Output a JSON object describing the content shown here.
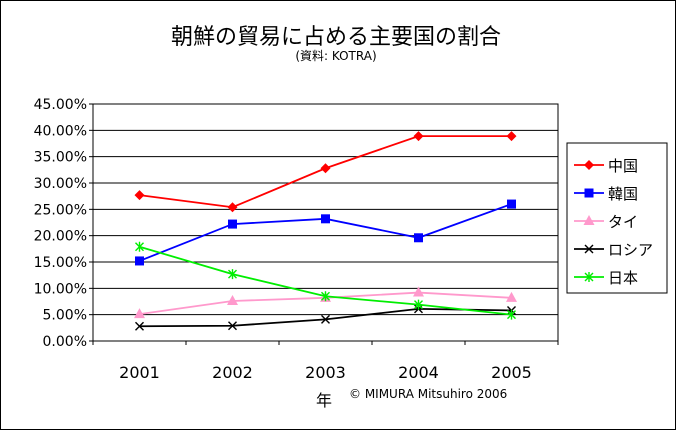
{
  "chart_data": {
    "type": "line",
    "title": "朝鮮の貿易に占める主要国の割合",
    "subtitle": "(資料: KOTRA)",
    "xlabel": "年",
    "ylabel": "",
    "credit": "© MIMURA Mitsuhiro 2006",
    "categories": [
      "2001",
      "2002",
      "2003",
      "2004",
      "2005"
    ],
    "ylim": [
      0,
      45
    ],
    "yticks": [
      "0.00%",
      "5.00%",
      "10.00%",
      "15.00%",
      "20.00%",
      "25.00%",
      "30.00%",
      "35.00%",
      "40.00%",
      "45.00%"
    ],
    "grid": true,
    "legend_position": "right",
    "series": [
      {
        "name": "中国",
        "color": "#ff0000",
        "marker": "diamond",
        "values": [
          27.7,
          25.4,
          32.8,
          38.9,
          38.9
        ]
      },
      {
        "name": "韓国",
        "color": "#0000ff",
        "marker": "square",
        "values": [
          15.2,
          22.2,
          23.2,
          19.6,
          26.0
        ]
      },
      {
        "name": "タイ",
        "color": "#ff99cc",
        "marker": "triangle",
        "values": [
          5.1,
          7.6,
          8.2,
          9.2,
          8.2
        ]
      },
      {
        "name": "ロシア",
        "color": "#000000",
        "marker": "x",
        "values": [
          2.8,
          2.9,
          4.1,
          6.1,
          5.8
        ]
      },
      {
        "name": "日本",
        "color": "#00ee00",
        "marker": "star",
        "values": [
          17.9,
          12.7,
          8.5,
          6.9,
          5.0
        ]
      }
    ]
  }
}
